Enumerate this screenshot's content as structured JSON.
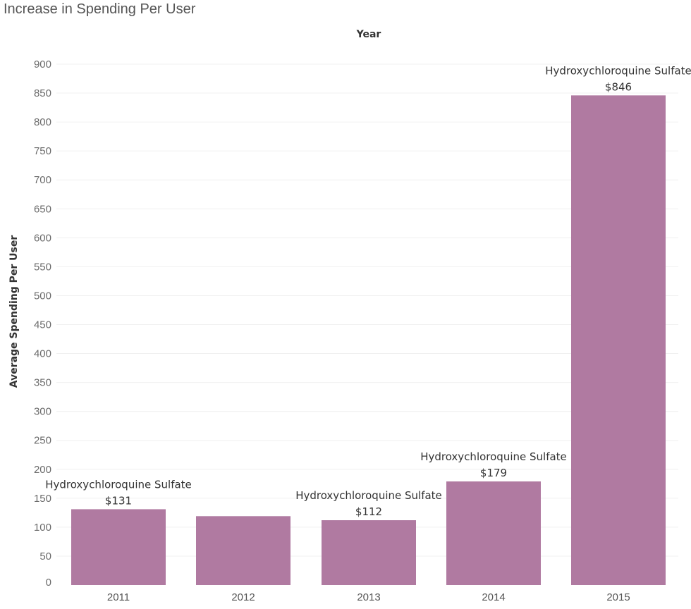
{
  "chart_data": {
    "type": "bar",
    "title": "Increase in Spending Per User",
    "column_header": "Year",
    "xlabel": "",
    "ylabel": "Average Spending Per User",
    "categories": [
      "2011",
      "2012",
      "2013",
      "2014",
      "2015"
    ],
    "values": [
      131,
      119,
      112,
      179,
      846
    ],
    "annotations": [
      {
        "category": "2011",
        "name": "Hydroxychloroquine Sulfate",
        "value_label": "$131"
      },
      {
        "category": "2013",
        "name": "Hydroxychloroquine Sulfate",
        "value_label": "$112"
      },
      {
        "category": "2014",
        "name": "Hydroxychloroquine Sulfate",
        "value_label": "$179"
      },
      {
        "category": "2015",
        "name": "Hydroxychloroquine Sulfate",
        "value_label": "$846"
      }
    ],
    "yticks": [
      0,
      50,
      100,
      150,
      200,
      250,
      300,
      350,
      400,
      450,
      500,
      550,
      600,
      650,
      700,
      750,
      800,
      850,
      900
    ],
    "ylim": [
      0,
      900
    ],
    "grid": true,
    "bar_color": "#b07aa1"
  }
}
